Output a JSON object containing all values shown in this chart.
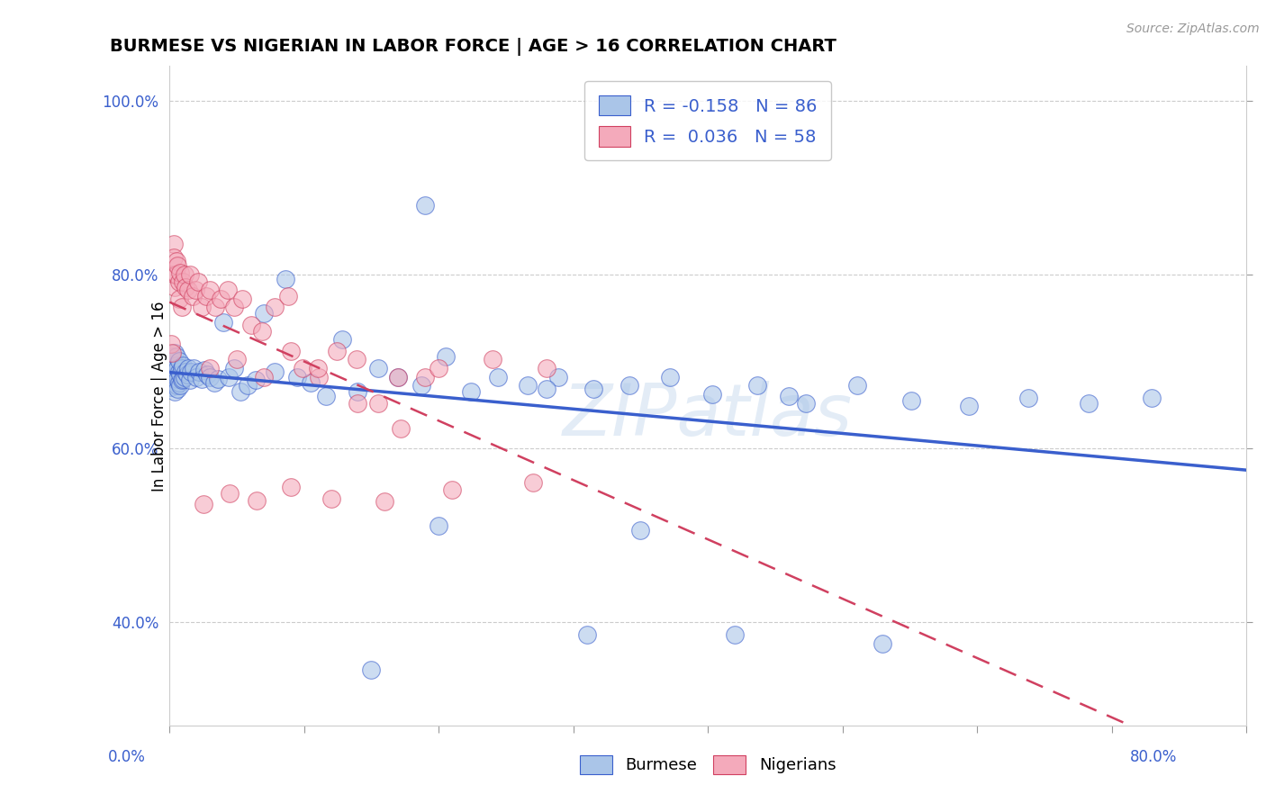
{
  "title": "BURMESE VS NIGERIAN IN LABOR FORCE | AGE > 16 CORRELATION CHART",
  "source_text": "Source: ZipAtlas.com",
  "ylabel": "In Labor Force | Age > 16",
  "y_tick_values": [
    0.4,
    0.6,
    0.8,
    1.0
  ],
  "x_min": 0.0,
  "x_max": 0.8,
  "y_min": 0.28,
  "y_max": 1.04,
  "burmese_color": "#aac5e8",
  "nigerian_color": "#f4aabb",
  "burmese_line_color": "#3a5fcd",
  "nigerian_line_color": "#d04060",
  "R_burmese": -0.158,
  "N_burmese": 86,
  "R_nigerian": 0.036,
  "N_nigerian": 58,
  "legend_burmese_label": "R = -0.158   N = 86",
  "legend_nigerian_label": "R =  0.036   N = 58",
  "watermark": "ZIPatlas",
  "background_color": "#ffffff",
  "burmese_x": [
    0.001,
    0.001,
    0.002,
    0.002,
    0.002,
    0.003,
    0.003,
    0.003,
    0.004,
    0.004,
    0.004,
    0.004,
    0.005,
    0.005,
    0.005,
    0.005,
    0.006,
    0.006,
    0.006,
    0.007,
    0.007,
    0.007,
    0.008,
    0.008,
    0.009,
    0.009,
    0.01,
    0.01,
    0.011,
    0.012,
    0.013,
    0.014,
    0.015,
    0.016,
    0.018,
    0.02,
    0.022,
    0.024,
    0.026,
    0.028,
    0.03,
    0.033,
    0.036,
    0.04,
    0.044,
    0.048,
    0.053,
    0.058,
    0.064,
    0.07,
    0.078,
    0.086,
    0.095,
    0.105,
    0.116,
    0.128,
    0.14,
    0.155,
    0.17,
    0.187,
    0.205,
    0.224,
    0.244,
    0.266,
    0.289,
    0.315,
    0.342,
    0.372,
    0.403,
    0.437,
    0.473,
    0.511,
    0.551,
    0.594,
    0.638,
    0.683,
    0.73,
    0.2,
    0.31,
    0.42,
    0.53,
    0.28,
    0.19,
    0.35,
    0.15,
    0.46
  ],
  "burmese_y": [
    0.685,
    0.67,
    0.68,
    0.695,
    0.705,
    0.675,
    0.69,
    0.7,
    0.665,
    0.68,
    0.695,
    0.71,
    0.672,
    0.685,
    0.695,
    0.705,
    0.668,
    0.68,
    0.692,
    0.675,
    0.688,
    0.7,
    0.672,
    0.685,
    0.678,
    0.692,
    0.68,
    0.695,
    0.682,
    0.688,
    0.685,
    0.692,
    0.678,
    0.688,
    0.692,
    0.682,
    0.688,
    0.68,
    0.69,
    0.685,
    0.682,
    0.675,
    0.68,
    0.745,
    0.682,
    0.692,
    0.665,
    0.672,
    0.678,
    0.755,
    0.688,
    0.795,
    0.682,
    0.675,
    0.66,
    0.725,
    0.665,
    0.692,
    0.682,
    0.672,
    0.705,
    0.665,
    0.682,
    0.672,
    0.682,
    0.668,
    0.672,
    0.682,
    0.662,
    0.672,
    0.652,
    0.672,
    0.655,
    0.648,
    0.658,
    0.652,
    0.658,
    0.51,
    0.385,
    0.385,
    0.375,
    0.668,
    0.88,
    0.505,
    0.345,
    0.66
  ],
  "nigerian_x": [
    0.001,
    0.002,
    0.003,
    0.003,
    0.004,
    0.004,
    0.005,
    0.005,
    0.006,
    0.007,
    0.007,
    0.008,
    0.009,
    0.01,
    0.011,
    0.012,
    0.014,
    0.015,
    0.017,
    0.019,
    0.021,
    0.024,
    0.027,
    0.03,
    0.034,
    0.038,
    0.043,
    0.048,
    0.054,
    0.061,
    0.069,
    0.078,
    0.088,
    0.099,
    0.111,
    0.124,
    0.139,
    0.155,
    0.172,
    0.19,
    0.03,
    0.05,
    0.07,
    0.09,
    0.11,
    0.14,
    0.17,
    0.2,
    0.24,
    0.28,
    0.025,
    0.045,
    0.065,
    0.09,
    0.12,
    0.16,
    0.21,
    0.27
  ],
  "nigerian_y": [
    0.72,
    0.71,
    0.835,
    0.82,
    0.785,
    0.8,
    0.815,
    0.8,
    0.81,
    0.792,
    0.772,
    0.802,
    0.762,
    0.792,
    0.8,
    0.785,
    0.782,
    0.8,
    0.775,
    0.782,
    0.792,
    0.762,
    0.775,
    0.782,
    0.762,
    0.772,
    0.782,
    0.762,
    0.772,
    0.742,
    0.735,
    0.762,
    0.775,
    0.692,
    0.682,
    0.712,
    0.702,
    0.652,
    0.622,
    0.682,
    0.692,
    0.702,
    0.682,
    0.712,
    0.692,
    0.652,
    0.682,
    0.692,
    0.702,
    0.692,
    0.535,
    0.548,
    0.54,
    0.555,
    0.542,
    0.538,
    0.552,
    0.56
  ]
}
